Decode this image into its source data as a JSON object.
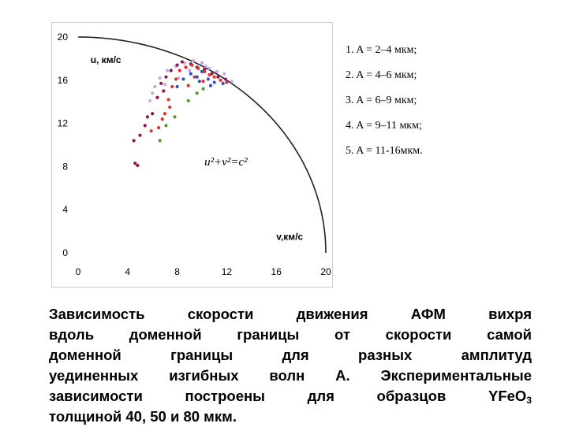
{
  "chart_data": {
    "type": "scatter",
    "ylabel": "u, км/с",
    "xlabel": "v,км/с",
    "xlim": [
      0,
      20
    ],
    "ylim": [
      0,
      20
    ],
    "x_ticks": [
      "0",
      "4",
      "8",
      "12",
      "16",
      "20"
    ],
    "y_ticks": [
      "0",
      "4",
      "8",
      "12",
      "16",
      "20"
    ],
    "grid": false,
    "legend_position": "right",
    "curve": {
      "label": "u²+v²=c²",
      "c": 20
    },
    "series": [
      {
        "name": "1. A = 2–4 мкм;",
        "color": "#c9a7e8",
        "points": [
          [
            6.2,
            15.4
          ],
          [
            6.6,
            16.2
          ],
          [
            7.2,
            16.9
          ],
          [
            7.9,
            17.3
          ],
          [
            8.6,
            17.6
          ],
          [
            9.3,
            17.8
          ],
          [
            10.0,
            17.6
          ],
          [
            10.6,
            17.1
          ],
          [
            11.2,
            16.8
          ],
          [
            11.8,
            16.6
          ],
          [
            5.8,
            14.1
          ],
          [
            6.0,
            14.8
          ],
          [
            7.0,
            15.6
          ],
          [
            8.1,
            16.2
          ],
          [
            9.0,
            16.9
          ],
          [
            10.3,
            17.3
          ],
          [
            11.5,
            16.0
          ],
          [
            12.4,
            15.9
          ]
        ]
      },
      {
        "name": "2. A = 4–6 мкм;",
        "color": "#8b1a4a",
        "points": [
          [
            4.6,
            8.3
          ],
          [
            4.8,
            8.1
          ],
          [
            4.5,
            10.4
          ],
          [
            5.0,
            10.9
          ],
          [
            5.4,
            11.8
          ],
          [
            5.6,
            12.6
          ],
          [
            6.0,
            12.9
          ],
          [
            6.4,
            14.4
          ],
          [
            6.7,
            15.7
          ],
          [
            7.1,
            16.3
          ],
          [
            7.5,
            16.9
          ],
          [
            8.0,
            17.4
          ],
          [
            8.4,
            17.7
          ],
          [
            9.1,
            17.5
          ],
          [
            9.6,
            17.2
          ],
          [
            10.2,
            17.0
          ],
          [
            10.8,
            16.6
          ],
          [
            11.3,
            16.3
          ],
          [
            11.9,
            16.1
          ],
          [
            6.9,
            15.0
          ]
        ]
      },
      {
        "name": "3. A = 6–9 мкм;",
        "color": "#e0302a",
        "points": [
          [
            5.9,
            11.3
          ],
          [
            6.5,
            11.6
          ],
          [
            7.0,
            12.9
          ],
          [
            7.3,
            14.2
          ],
          [
            7.6,
            15.4
          ],
          [
            7.9,
            16.1
          ],
          [
            8.2,
            16.9
          ],
          [
            8.7,
            17.2
          ],
          [
            9.2,
            17.4
          ],
          [
            9.7,
            17.1
          ],
          [
            10.2,
            16.8
          ],
          [
            10.6,
            16.5
          ],
          [
            11.0,
            16.3
          ],
          [
            11.5,
            16.0
          ],
          [
            12.0,
            15.8
          ],
          [
            8.9,
            15.5
          ],
          [
            10.1,
            15.9
          ],
          [
            7.4,
            13.5
          ],
          [
            6.8,
            12.4
          ],
          [
            9.4,
            16.3
          ]
        ]
      },
      {
        "name": "4. A = 9–11 мкм;",
        "color": "#2b4fd6",
        "points": [
          [
            8.5,
            16.1
          ],
          [
            9.1,
            16.6
          ],
          [
            9.6,
            16.3
          ],
          [
            10.0,
            16.8
          ],
          [
            10.5,
            16.1
          ],
          [
            11.0,
            15.8
          ],
          [
            11.7,
            15.7
          ],
          [
            8.0,
            15.4
          ],
          [
            10.7,
            15.5
          ],
          [
            9.8,
            15.9
          ]
        ]
      },
      {
        "name": "5. A = 11-16мкм.",
        "color": "#5a9a2a",
        "points": [
          [
            6.6,
            10.4
          ],
          [
            7.1,
            11.8
          ],
          [
            7.8,
            12.6
          ],
          [
            8.9,
            14.1
          ],
          [
            9.6,
            14.8
          ],
          [
            10.1,
            15.2
          ]
        ]
      }
    ]
  },
  "caption": {
    "lines": [
      "Зависимость скорости движения АФМ вихря",
      "вдоль доменной границы от скорости самой",
      "доменной границы для разных амплитуд",
      "уединенных изгибных волн A. Экспериментальные",
      "зависимости построены для образцов YFeO"
    ],
    "subscript": "3",
    "last_line": "толщиной 40, 50 и 80 мкм."
  }
}
